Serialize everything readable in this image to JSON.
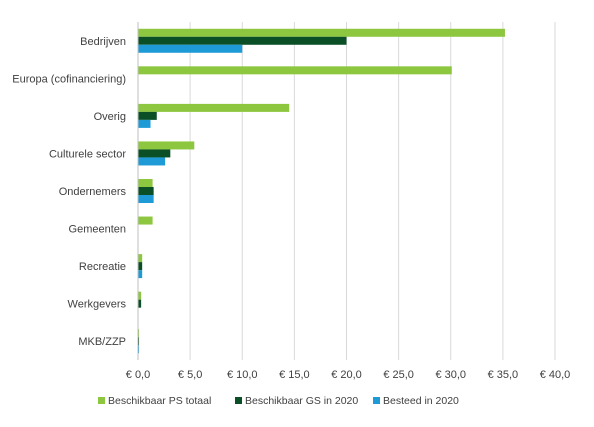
{
  "chart_data": {
    "type": "bar",
    "orientation": "horizontal",
    "categories": [
      "Bedrijven",
      "Europa (cofinanciering)",
      "Overig",
      "Culturele sector",
      "Ondernemers",
      "Gemeenten",
      "Recreatie",
      "Werkgevers",
      "MKB/ZZP"
    ],
    "series": [
      {
        "name": "Beschikbaar PS totaal",
        "color": "#8DC63F",
        "values": [
          35.2,
          30.1,
          14.5,
          5.4,
          1.4,
          1.4,
          0.4,
          0.3,
          0.1
        ]
      },
      {
        "name": "Beschikbaar GS in 2020",
        "color": "#0B4F26",
        "values": [
          20.0,
          0,
          1.8,
          3.1,
          1.5,
          0,
          0.4,
          0.3,
          0.1
        ]
      },
      {
        "name": "Besteed in 2020",
        "color": "#1E9BD7",
        "values": [
          10.0,
          0,
          1.2,
          2.6,
          1.5,
          0,
          0.4,
          0,
          0.1
        ]
      }
    ],
    "xlim": [
      0,
      40
    ],
    "xticks": [
      "€ 0,0",
      "€ 5,0",
      "€ 10,0",
      "€ 15,0",
      "€ 20,0",
      "€ 25,0",
      "€ 30,0",
      "€ 35,0",
      "€ 40,0"
    ],
    "grid": "vertical",
    "legend_position": "bottom",
    "title": "",
    "xlabel": "",
    "ylabel": ""
  }
}
